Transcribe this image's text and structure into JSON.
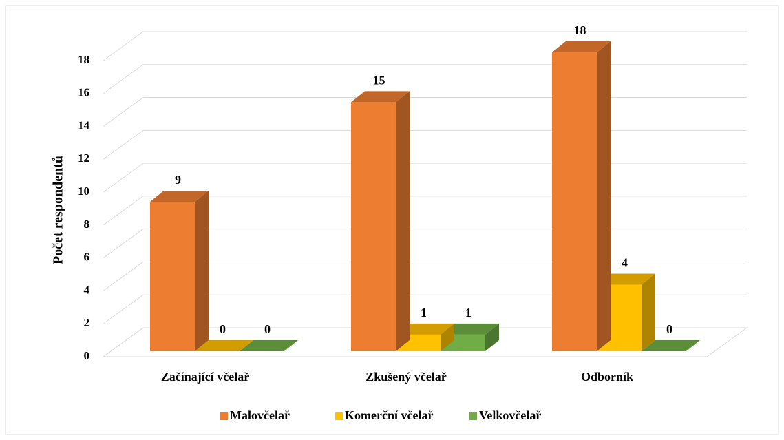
{
  "chart_data": {
    "type": "bar3d",
    "y_label": "Počet respondentů",
    "categories": [
      "Začínající včelař",
      "Zkušený včelař",
      "Odborník"
    ],
    "series": [
      {
        "name": "Malovčelař",
        "color": "#ed7d31",
        "values": [
          9,
          15,
          18
        ]
      },
      {
        "name": "Komerční včelař",
        "color": "#ffc000",
        "values": [
          0,
          1,
          4
        ]
      },
      {
        "name": "Velkovčelař",
        "color": "#70ad47",
        "values": [
          0,
          1,
          0
        ]
      }
    ],
    "ylim": [
      0,
      18
    ],
    "yticks": [
      0,
      2,
      4,
      6,
      8,
      10,
      12,
      14,
      16,
      18
    ],
    "grid": true,
    "legend": "bottom"
  }
}
